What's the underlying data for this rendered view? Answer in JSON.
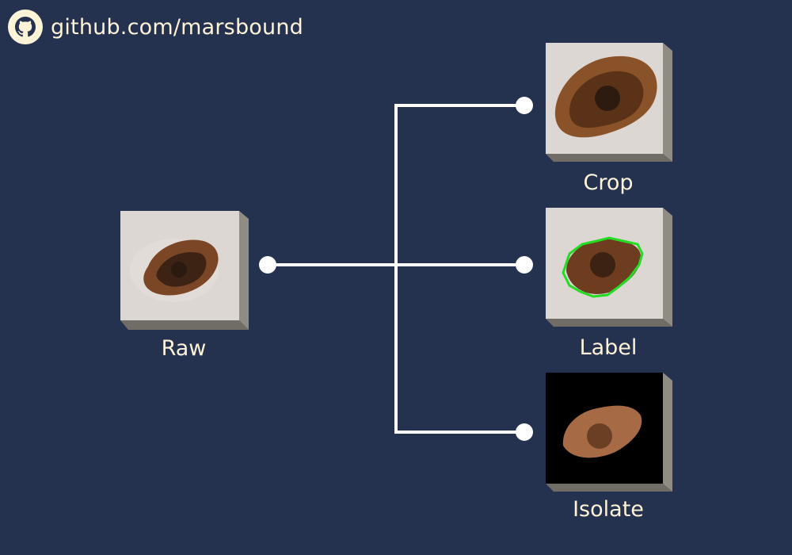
{
  "header": {
    "text": "github.com/marsbound",
    "icon": "github-icon"
  },
  "colors": {
    "background": "#25324f",
    "text": "#fdf3d7",
    "connector": "#ffffff",
    "outline": "#22dd22",
    "skin": "#ddd7d3",
    "lesion": "#6b3a1f"
  },
  "nodes": {
    "raw": {
      "label": "Raw"
    },
    "crop": {
      "label": "Crop"
    },
    "label": {
      "label": "Label"
    },
    "isolate": {
      "label": "Isolate"
    }
  }
}
